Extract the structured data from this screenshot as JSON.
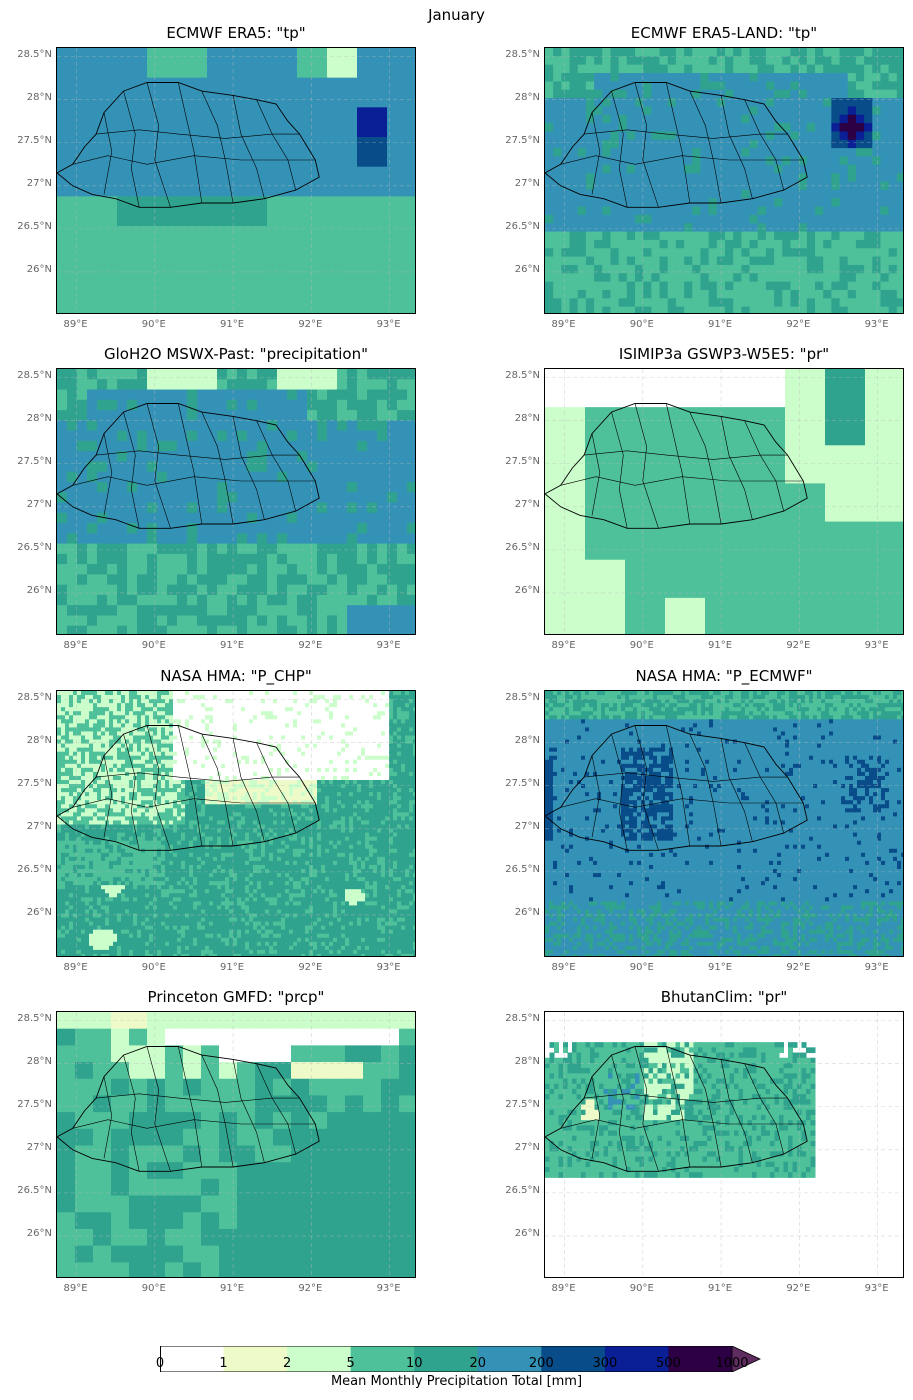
{
  "suptitle": "January",
  "panels": [
    {
      "title": "ECMWF ERA5: \"tp\"",
      "style": "era5"
    },
    {
      "title": "ECMWF ERA5-LAND: \"tp\"",
      "style": "era5land"
    },
    {
      "title": "GloH2O MSWX-Past: \"precipitation\"",
      "style": "mswx"
    },
    {
      "title": "ISIMIP3a GSWP3-W5E5: \"pr\"",
      "style": "isimip"
    },
    {
      "title": "NASA HMA: \"P_CHP\"",
      "style": "chp"
    },
    {
      "title": "NASA HMA: \"P_ECMWF\"",
      "style": "hmaecmwf"
    },
    {
      "title": "Princeton GMFD: \"prcp\"",
      "style": "gmfd"
    },
    {
      "title": "BhutanClim: \"pr\"",
      "style": "bhutanclim"
    }
  ],
  "lat_ticks": [
    "28.5°N",
    "28°N",
    "27.5°N",
    "27°N",
    "26.5°N",
    "26°N"
  ],
  "lon_ticks": [
    "89°E",
    "90°E",
    "91°E",
    "92°E",
    "93°E"
  ],
  "colorbar": {
    "label": "Mean Monthly Precipitation Total [mm]",
    "ticks": [
      "0",
      "1",
      "2",
      "5",
      "10",
      "20",
      "200",
      "300",
      "500",
      "1000"
    ],
    "colors": [
      "#ffffff",
      "#eefbc8",
      "#ccfecc",
      "#4ec09a",
      "#30a38e",
      "#3592b7",
      "#084c8a",
      "#0a1f96",
      "#2d0045"
    ],
    "extend_color": "#5e2c5e"
  }
}
